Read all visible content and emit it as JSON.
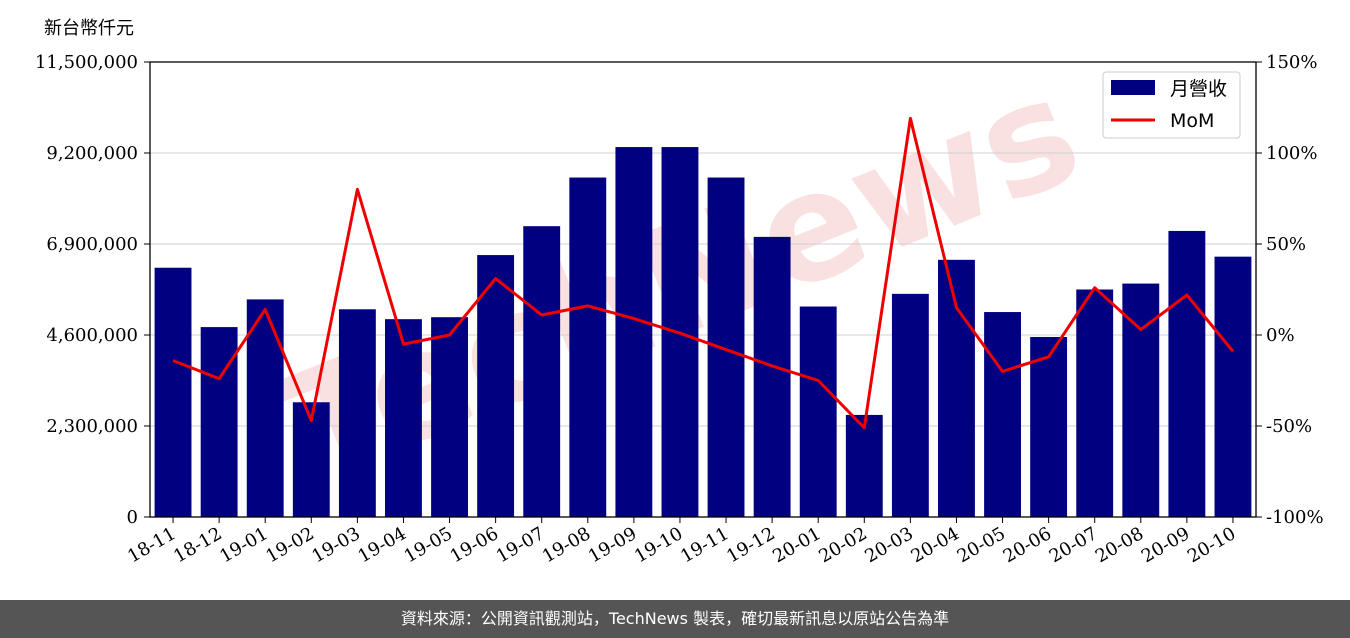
{
  "chart_data": {
    "type": "bar+line",
    "unit_label": "新台幣仟元",
    "categories": [
      "18-11",
      "18-12",
      "19-01",
      "19-02",
      "19-03",
      "19-04",
      "19-05",
      "19-06",
      "19-07",
      "19-08",
      "19-09",
      "19-10",
      "19-11",
      "19-12",
      "20-01",
      "20-02",
      "20-03",
      "20-04",
      "20-05",
      "20-06",
      "20-07",
      "20-08",
      "20-09",
      "20-10"
    ],
    "series": [
      {
        "name": "月營收",
        "type": "bar",
        "color": "#000080",
        "values": [
          6300000,
          4800000,
          5500000,
          2900000,
          5250000,
          5000000,
          5050000,
          6620000,
          7350000,
          8580000,
          9350000,
          9350000,
          8580000,
          7080000,
          5320000,
          2580000,
          5640000,
          6500000,
          5180000,
          4550000,
          5750000,
          5900000,
          7230000,
          6580000
        ]
      },
      {
        "name": "MoM",
        "type": "line",
        "axis": "right",
        "color": "#ee0000",
        "values": [
          -14,
          -24,
          14,
          -47,
          80,
          -5,
          0,
          31,
          11,
          16,
          9,
          1,
          -8,
          -17,
          -25,
          -51,
          119,
          15,
          -20,
          -12,
          26,
          3,
          22,
          -9
        ]
      }
    ],
    "left_axis": {
      "ylim": [
        0,
        11500000
      ],
      "ticks": [
        "0",
        "2,300,000",
        "4,600,000",
        "6,900,000",
        "9,200,000",
        "11,500,000"
      ]
    },
    "right_axis": {
      "ylim": [
        -100,
        150
      ],
      "ticks": [
        "-100%",
        "-50%",
        "0%",
        "50%",
        "100%",
        "150%"
      ]
    },
    "grid": true,
    "legend_position": "top-right"
  },
  "watermark": "TechNews",
  "footer": {
    "source_text": "資料來源：公開資訊觀測站，TechNews 製表，確切最新訊息以原站公告為準"
  }
}
